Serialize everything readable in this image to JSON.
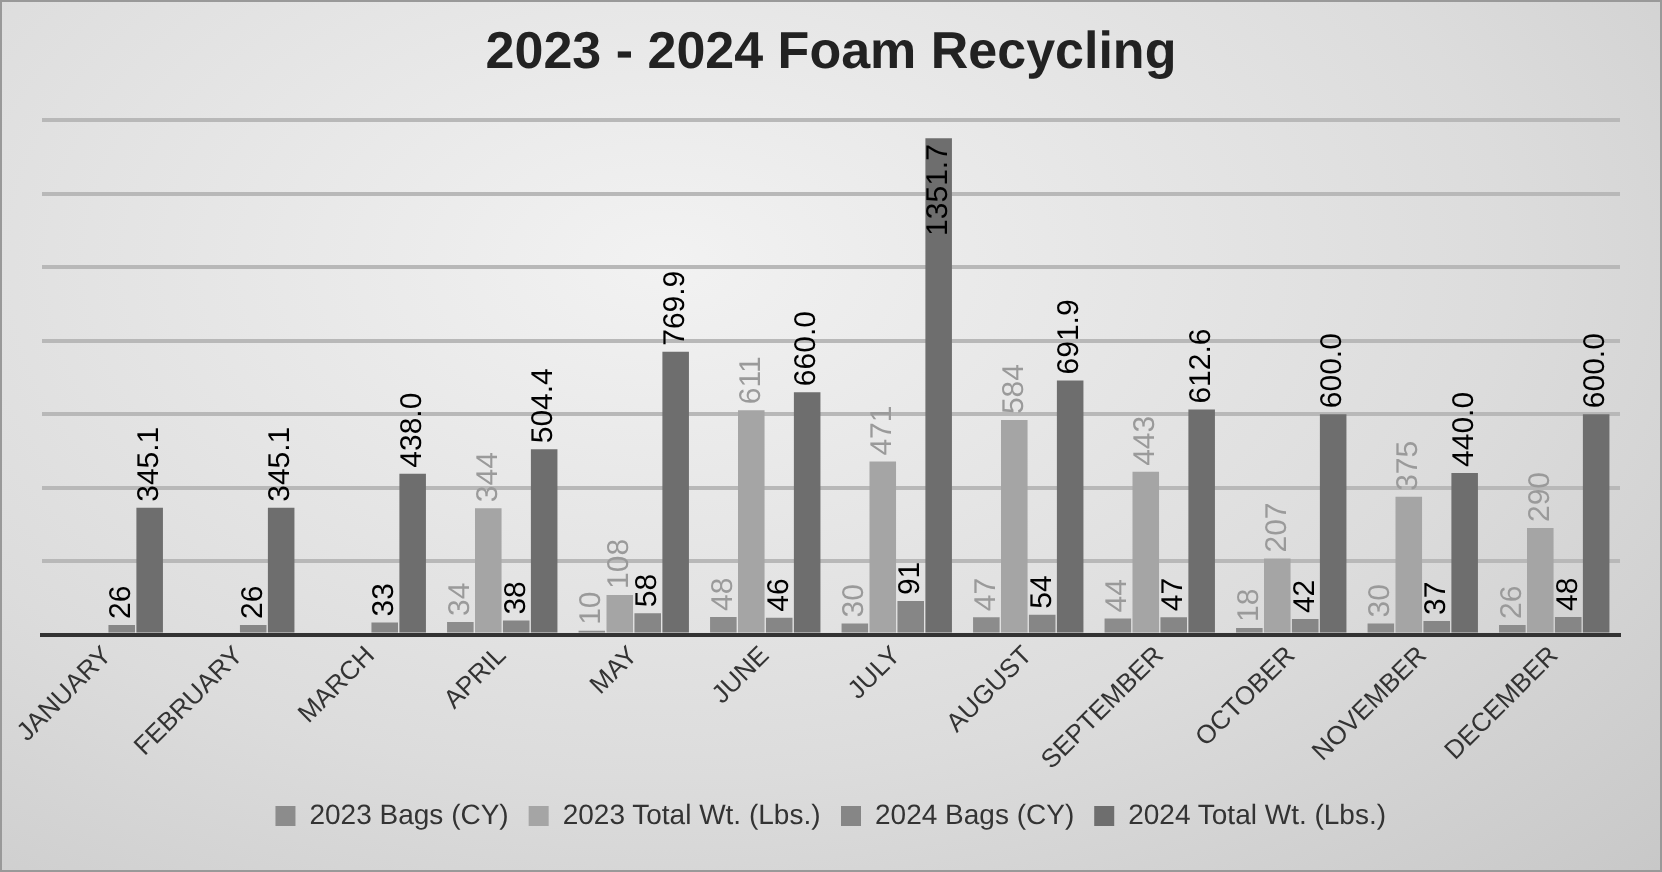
{
  "chart_data": {
    "type": "bar",
    "title": "2023 - 2024 Foam Recycling",
    "categories": [
      "JANUARY",
      "FEBRUARY",
      "MARCH",
      "APRIL",
      "MAY",
      "JUNE",
      "JULY",
      "AUGUST",
      "SEPTEMBER",
      "OCTOBER",
      "NOVEMBER",
      "DECEMBER"
    ],
    "series": [
      {
        "name": "2023 Bags (CY)",
        "color": "#8c8c8c",
        "values": [
          null,
          null,
          null,
          34,
          10,
          48,
          30,
          47,
          44,
          18,
          30,
          26
        ]
      },
      {
        "name": "2023 Total Wt. (Lbs.)",
        "color": "#a5a5a5",
        "values": [
          null,
          null,
          null,
          344,
          108,
          611,
          471,
          584,
          443,
          207,
          375,
          290
        ]
      },
      {
        "name": "2024 Bags (CY)",
        "color": "#868686",
        "values": [
          26,
          26,
          33,
          38,
          58,
          46,
          91,
          54,
          47,
          42,
          37,
          48
        ]
      },
      {
        "name": "2024 Total Wt. (Lbs.)",
        "color": "#6e6e6e",
        "values": [
          345.1,
          345.1,
          438.0,
          504.4,
          769.9,
          660.0,
          1351.7,
          691.9,
          612.6,
          600.0,
          440.0,
          600.0
        ],
        "value_labels": [
          "345.1",
          "345.1",
          "438.0",
          "504.4",
          "769.9",
          "660.0",
          "1351.7",
          "691.9",
          "612.6",
          "600.0",
          "440.0",
          "600.0"
        ]
      }
    ],
    "ylim": [
      0,
      1400
    ],
    "yticks": [
      {
        "value": 0,
        "label": null
      },
      {
        "value": 200,
        "label": null
      },
      {
        "value": 400,
        "label": null
      },
      {
        "value": 600,
        "label": null
      },
      {
        "value": 800,
        "label": null
      },
      {
        "value": 1000,
        "label": null
      },
      {
        "value": 1200,
        "label": null
      },
      {
        "value": 1400,
        "label": null
      }
    ],
    "tick_labels": "x",
    "grid": "y",
    "legend": "bottom",
    "data_labels": true
  }
}
